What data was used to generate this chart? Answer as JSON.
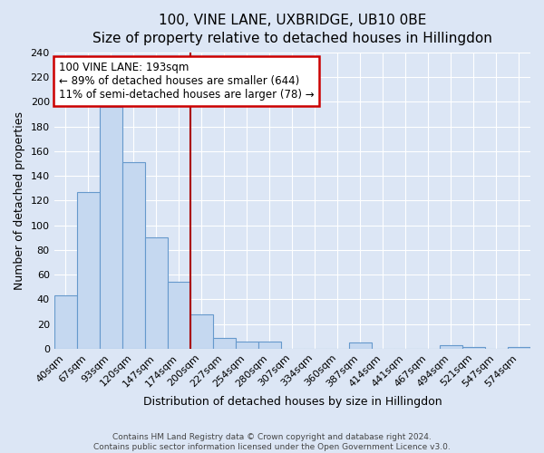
{
  "title": "100, VINE LANE, UXBRIDGE, UB10 0BE",
  "subtitle": "Size of property relative to detached houses in Hillingdon",
  "xlabel": "Distribution of detached houses by size in Hillingdon",
  "ylabel": "Number of detached properties",
  "bin_labels": [
    "40sqm",
    "67sqm",
    "93sqm",
    "120sqm",
    "147sqm",
    "174sqm",
    "200sqm",
    "227sqm",
    "254sqm",
    "280sqm",
    "307sqm",
    "334sqm",
    "360sqm",
    "387sqm",
    "414sqm",
    "441sqm",
    "467sqm",
    "494sqm",
    "521sqm",
    "547sqm",
    "574sqm"
  ],
  "bar_values": [
    43,
    127,
    196,
    151,
    90,
    54,
    28,
    9,
    6,
    6,
    0,
    0,
    0,
    5,
    0,
    0,
    0,
    3,
    1,
    0,
    1
  ],
  "bar_color": "#c5d8f0",
  "bar_edge_color": "#6699cc",
  "vline_bin_index": 6,
  "vline_color": "#aa0000",
  "annotation_text": "100 VINE LANE: 193sqm\n← 89% of detached houses are smaller (644)\n11% of semi-detached houses are larger (78) →",
  "annotation_box_color": "#ffffff",
  "annotation_box_edge_color": "#cc0000",
  "ylim": [
    0,
    240
  ],
  "yticks": [
    0,
    20,
    40,
    60,
    80,
    100,
    120,
    140,
    160,
    180,
    200,
    220,
    240
  ],
  "footer1": "Contains HM Land Registry data © Crown copyright and database right 2024.",
  "footer2": "Contains public sector information licensed under the Open Government Licence v3.0.",
  "bg_color": "#dce6f5",
  "plot_bg_color": "#dce6f5",
  "grid_color": "#ffffff",
  "title_fontsize": 11,
  "subtitle_fontsize": 10,
  "xlabel_fontsize": 9,
  "ylabel_fontsize": 9,
  "tick_fontsize": 8,
  "annotation_fontsize": 8.5
}
